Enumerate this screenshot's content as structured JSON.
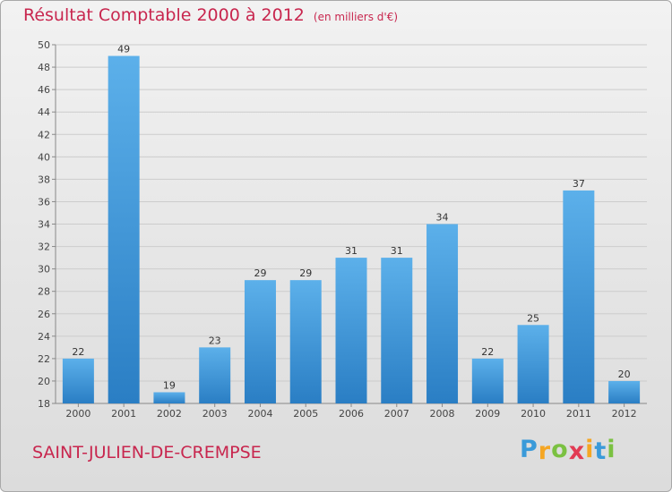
{
  "title": "Résultat Comptable 2000 à 2012",
  "unit_note": "(en milliers d'€)",
  "subject": "SAINT-JULIEN-DE-CREMPSE",
  "logo": {
    "letters": [
      "P",
      "r",
      "o",
      "x",
      "i",
      "t",
      "i"
    ],
    "colors": [
      "#3a9ad9",
      "#f5a623",
      "#7bc142",
      "#e23b53",
      "#f5a623",
      "#3a9ad9",
      "#7bc142"
    ]
  },
  "colors": {
    "bar_light": "#5cb0ea",
    "bar_dark": "#2a7ec4",
    "title": "#c8264e"
  },
  "chart_data": {
    "type": "bar",
    "categories": [
      "2000",
      "2001",
      "2002",
      "2003",
      "2004",
      "2005",
      "2006",
      "2007",
      "2008",
      "2009",
      "2010",
      "2011",
      "2012"
    ],
    "values": [
      22,
      49,
      19,
      23,
      29,
      29,
      31,
      31,
      34,
      22,
      25,
      37,
      20
    ],
    "ylim": [
      18,
      50
    ],
    "yticks": [
      18,
      20,
      22,
      24,
      26,
      28,
      30,
      32,
      34,
      36,
      38,
      40,
      42,
      44,
      46,
      48,
      50
    ],
    "grid": true,
    "data_labels": true
  }
}
